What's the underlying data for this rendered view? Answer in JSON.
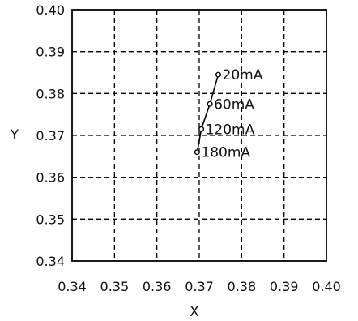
{
  "chart_data": {
    "type": "line",
    "title": "",
    "xlabel": "X",
    "ylabel": "Y",
    "xlim": [
      0.34,
      0.4
    ],
    "ylim": [
      0.34,
      0.4
    ],
    "x_ticks": [
      "0.34",
      "0.35",
      "0.36",
      "0.37",
      "0.38",
      "0.39",
      "0.40"
    ],
    "y_ticks": [
      "0.34",
      "0.35",
      "0.36",
      "0.37",
      "0.38",
      "0.39",
      "0.40"
    ],
    "grid": true,
    "grid_style": "dashed",
    "series": [
      {
        "points": [
          {
            "x": 0.3745,
            "y": 0.3845,
            "label": "20mA"
          },
          {
            "x": 0.3725,
            "y": 0.3775,
            "label": "60mA"
          },
          {
            "x": 0.3705,
            "y": 0.3715,
            "label": "120mA"
          },
          {
            "x": 0.3695,
            "y": 0.366,
            "label": "180mA"
          }
        ]
      }
    ]
  }
}
